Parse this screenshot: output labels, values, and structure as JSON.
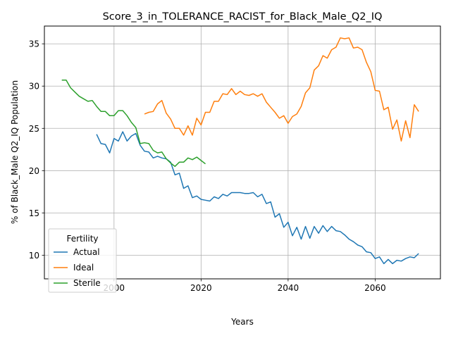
{
  "chart_data": {
    "type": "line",
    "title": "Score_3_in_TOLERANCE_RACIST_for_Black_Male_Q2_IQ",
    "xlabel": "Years",
    "ylabel": "% of Black_Male Q2_IQ Population",
    "xlim": [
      1984,
      2075
    ],
    "ylim": [
      7.2,
      37.1
    ],
    "xticks": [
      2000,
      2020,
      2040,
      2060
    ],
    "yticks": [
      10,
      15,
      20,
      25,
      30,
      35
    ],
    "grid": true,
    "legend": {
      "title": "Fertility",
      "placement": "lower-left"
    },
    "series": [
      {
        "name": "Actual",
        "color": "#1f77b4",
        "x": [
          1996,
          1997,
          1998,
          1999,
          2000,
          2001,
          2002,
          2003,
          2004,
          2005,
          2006,
          2007,
          2008,
          2009,
          2010,
          2011,
          2012,
          2013,
          2014,
          2015,
          2016,
          2017,
          2018,
          2019,
          2020,
          2021,
          2022,
          2023,
          2024,
          2025,
          2026,
          2027,
          2028,
          2029,
          2030,
          2031,
          2032,
          2033,
          2034,
          2035,
          2036,
          2037,
          2038,
          2039,
          2040,
          2041,
          2042,
          2043,
          2044,
          2045,
          2046,
          2047,
          2048,
          2049,
          2050,
          2051,
          2052,
          2053,
          2054,
          2055,
          2056,
          2057,
          2058,
          2059,
          2060,
          2061,
          2062,
          2063,
          2064,
          2065,
          2066,
          2067,
          2068,
          2069,
          2070
        ],
        "values": [
          24.3,
          23.2,
          23.1,
          22.1,
          23.8,
          23.5,
          24.6,
          23.5,
          24.1,
          24.4,
          23.0,
          22.3,
          22.2,
          21.5,
          21.7,
          21.5,
          21.4,
          21.0,
          19.5,
          19.7,
          17.9,
          18.2,
          16.8,
          17.0,
          16.6,
          16.5,
          16.4,
          16.9,
          16.7,
          17.2,
          17.0,
          17.4,
          17.4,
          17.4,
          17.3,
          17.3,
          17.4,
          16.9,
          17.2,
          16.1,
          16.3,
          14.5,
          14.9,
          13.3,
          13.9,
          12.3,
          13.3,
          11.9,
          13.4,
          12.0,
          13.4,
          12.6,
          13.5,
          12.8,
          13.4,
          12.9,
          12.8,
          12.4,
          11.9,
          11.6,
          11.2,
          11.0,
          10.4,
          10.3,
          9.6,
          9.8,
          9.0,
          9.5,
          9.0,
          9.4,
          9.3,
          9.6,
          9.8,
          9.7,
          10.2
        ]
      },
      {
        "name": "Ideal",
        "color": "#ff7f0e",
        "x": [
          2007,
          2008,
          2009,
          2010,
          2011,
          2012,
          2013,
          2014,
          2015,
          2016,
          2017,
          2018,
          2019,
          2020,
          2021,
          2022,
          2023,
          2024,
          2025,
          2026,
          2027,
          2028,
          2029,
          2030,
          2031,
          2032,
          2033,
          2034,
          2035,
          2036,
          2037,
          2038,
          2039,
          2040,
          2041,
          2042,
          2043,
          2044,
          2045,
          2046,
          2047,
          2048,
          2049,
          2050,
          2051,
          2052,
          2053,
          2054,
          2055,
          2056,
          2057,
          2058,
          2059,
          2060,
          2061,
          2062,
          2063,
          2064,
          2065,
          2066,
          2067,
          2068,
          2069,
          2070
        ],
        "values": [
          26.7,
          26.9,
          27.0,
          27.9,
          28.3,
          26.8,
          26.1,
          25.0,
          25.0,
          24.2,
          25.3,
          24.2,
          26.2,
          25.4,
          26.9,
          26.9,
          28.2,
          28.2,
          29.1,
          29.0,
          29.7,
          29.0,
          29.4,
          29.0,
          28.9,
          29.1,
          28.8,
          29.1,
          28.1,
          27.5,
          26.9,
          26.2,
          26.5,
          25.6,
          26.4,
          26.7,
          27.6,
          29.2,
          29.8,
          31.9,
          32.4,
          33.6,
          33.3,
          34.3,
          34.6,
          35.7,
          35.6,
          35.7,
          34.5,
          34.6,
          34.3,
          32.8,
          31.7,
          29.5,
          29.4,
          27.2,
          27.5,
          24.9,
          26.0,
          23.5,
          25.9,
          23.9,
          27.8,
          27.0
        ]
      },
      {
        "name": "Sterile",
        "color": "#2ca02c",
        "x": [
          1988,
          1989,
          1990,
          1991,
          1992,
          1993,
          1994,
          1995,
          1996,
          1997,
          1998,
          1999,
          2000,
          2001,
          2002,
          2003,
          2004,
          2005,
          2006,
          2007,
          2008,
          2009,
          2010,
          2011,
          2012,
          2013,
          2014,
          2015,
          2016,
          2017,
          2018,
          2019,
          2020,
          2021
        ],
        "values": [
          30.7,
          30.7,
          29.8,
          29.3,
          28.8,
          28.5,
          28.2,
          28.3,
          27.6,
          27.0,
          27.0,
          26.5,
          26.5,
          27.1,
          27.1,
          26.5,
          25.7,
          25.1,
          23.2,
          23.3,
          23.2,
          22.4,
          22.1,
          22.2,
          21.4,
          20.9,
          20.5,
          21.0,
          21.0,
          21.5,
          21.3,
          21.6,
          21.2,
          20.8
        ]
      }
    ]
  }
}
